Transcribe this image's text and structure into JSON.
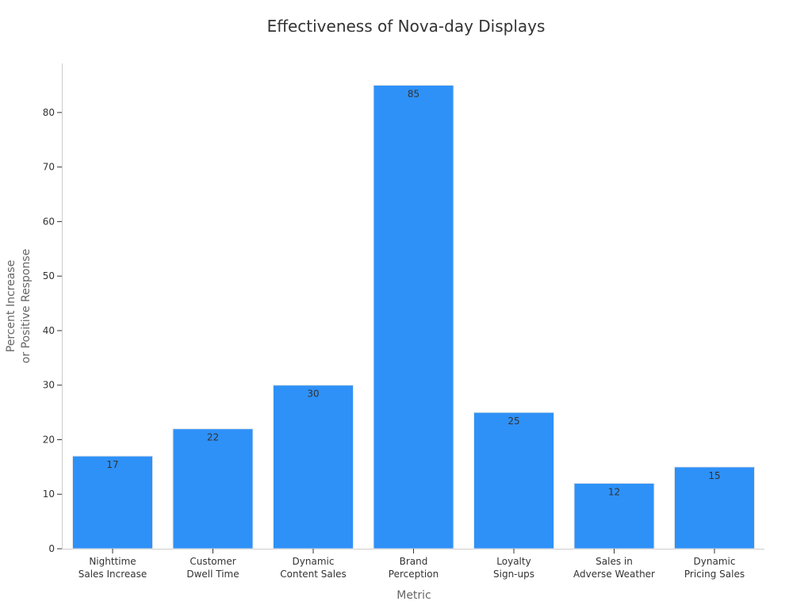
{
  "chart_data": {
    "type": "bar",
    "title": "Effectiveness of Nova-day Displays",
    "xlabel": "Metric",
    "ylabel": [
      "Percent Increase",
      "or Positive Response"
    ],
    "categories": [
      [
        "Nighttime",
        "Sales Increase"
      ],
      [
        "Customer",
        "Dwell Time"
      ],
      [
        "Dynamic",
        "Content Sales"
      ],
      [
        "Brand",
        "Perception"
      ],
      [
        "Loyalty",
        "Sign-ups"
      ],
      [
        "Sales in",
        "Adverse Weather"
      ],
      [
        "Dynamic",
        "Pricing Sales"
      ]
    ],
    "values": [
      17,
      22,
      30,
      85,
      25,
      12,
      15
    ],
    "ylim": [
      0,
      89
    ],
    "yticks": [
      0,
      10,
      20,
      30,
      40,
      50,
      60,
      70,
      80
    ],
    "bar_color": "#2e91f8",
    "grid": false,
    "legend": "none"
  }
}
